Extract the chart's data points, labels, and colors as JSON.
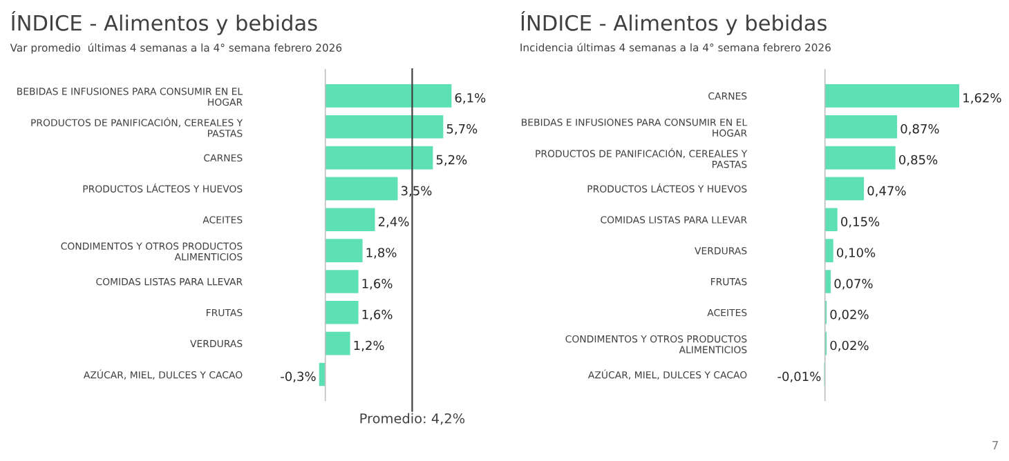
{
  "chart_data": [
    {
      "type": "bar",
      "orientation": "horizontal",
      "title": "ÍNDICE - Alimentos y bebidas",
      "subtitle": "Var promedio  últimas 4 semanas a la 4° semana febrero 2026",
      "categories": [
        "BEBIDAS E INFUSIONES PARA CONSUMIR EN EL HOGAR",
        "PRODUCTOS DE PANIFICACIÓN, CEREALES Y PASTAS",
        "CARNES",
        "PRODUCTOS LÁCTEOS Y HUEVOS",
        "ACEITES",
        "CONDIMENTOS Y OTROS PRODUCTOS ALIMENTICIOS",
        "COMIDAS LISTAS PARA LLEVAR",
        "FRUTAS",
        "VERDURAS",
        "AZÚCAR, MIEL, DULCES Y CACAO"
      ],
      "values": [
        6.1,
        5.7,
        5.2,
        3.5,
        2.4,
        1.8,
        1.6,
        1.6,
        1.2,
        -0.3
      ],
      "value_labels": [
        "6,1%",
        "5,7%",
        "5,2%",
        "3,5%",
        "2,4%",
        "1,8%",
        "1,6%",
        "1,6%",
        "1,2%",
        "-0,3%"
      ],
      "color": "#5de0b4",
      "ref_lines": [
        {
          "axis": "x",
          "value": 4.2,
          "label": "Promedio: 4,2%",
          "color": "#404040"
        }
      ]
    },
    {
      "type": "bar",
      "orientation": "horizontal",
      "title": "ÍNDICE - Alimentos y bebidas",
      "subtitle": "Incidencia últimas 4 semanas a la 4° semana febrero 2026",
      "categories": [
        "CARNES",
        "BEBIDAS E INFUSIONES PARA CONSUMIR EN EL HOGAR",
        "PRODUCTOS DE PANIFICACIÓN, CEREALES Y PASTAS",
        "PRODUCTOS LÁCTEOS Y HUEVOS",
        "COMIDAS LISTAS PARA LLEVAR",
        "VERDURAS",
        "FRUTAS",
        "ACEITES",
        "CONDIMENTOS Y OTROS PRODUCTOS ALIMENTICIOS",
        "AZÚCAR, MIEL, DULCES Y CACAO"
      ],
      "values": [
        1.62,
        0.87,
        0.85,
        0.47,
        0.15,
        0.1,
        0.07,
        0.02,
        0.02,
        -0.01
      ],
      "value_labels": [
        "1,62%",
        "0,87%",
        "0,85%",
        "0,47%",
        "0,15%",
        "0,10%",
        "0,07%",
        "0,02%",
        "0,02%",
        "-0,01%"
      ],
      "color": "#5de0b4",
      "annotations": [
        "7"
      ]
    }
  ]
}
